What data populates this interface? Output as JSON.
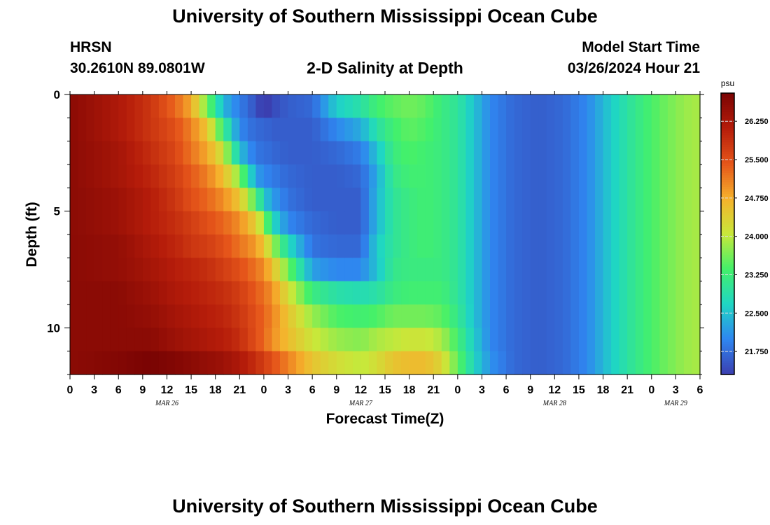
{
  "header": {
    "title": "University of Southern Mississippi Ocean Cube",
    "station": "HRSN",
    "coordinates": "30.2610N  89.0801W",
    "subtitle": "2-D Salinity at Depth",
    "model_start_label": "Model Start Time",
    "model_start_value": "03/26/2024 Hour 21"
  },
  "footer": {
    "title": "University of Southern Mississippi Ocean Cube"
  },
  "chart_data": {
    "type": "heatmap",
    "xlabel": "Forecast Time(Z)",
    "ylabel": "Depth (ft)",
    "colorbar_unit": "psu",
    "x_range_hours": [
      0,
      78
    ],
    "x_tick_labels": [
      "0",
      "3",
      "6",
      "9",
      "12",
      "15",
      "18",
      "21",
      "0",
      "3",
      "6",
      "9",
      "12",
      "15",
      "18",
      "21",
      "0",
      "3",
      "6",
      "9",
      "12",
      "15",
      "18",
      "21",
      "0",
      "3",
      "6"
    ],
    "day_labels": [
      {
        "label": "MAR 26",
        "hour": 12
      },
      {
        "label": "MAR 27",
        "hour": 36
      },
      {
        "label": "MAR 28",
        "hour": 60
      },
      {
        "label": "MAR 29",
        "hour": 75
      }
    ],
    "ylim": [
      0,
      12
    ],
    "y_inverted": true,
    "y_ticks": [
      0,
      5,
      10
    ],
    "colorbar_ticks": [
      "21.750",
      "22.500",
      "23.250",
      "24.000",
      "24.750",
      "25.500",
      "26.250"
    ],
    "colorbar_range": [
      21.3,
      26.8
    ],
    "colormap": [
      "#3b3fb0",
      "#2f86f0",
      "#1fd6c4",
      "#44f06a",
      "#c8e83a",
      "#f6b12c",
      "#e5551a",
      "#b51c0a",
      "#7a0403"
    ],
    "depth_levels": [
      0.5,
      1.5,
      2.5,
      3.5,
      4.5,
      5.5,
      6.5,
      7.5,
      8.5,
      9.5,
      10.5,
      11.5
    ],
    "salinity_profiles": [
      {
        "hour": 0,
        "values": [
          26.6,
          26.6,
          26.6,
          26.6,
          26.6,
          26.6,
          26.6,
          26.6,
          26.6,
          26.6,
          26.6,
          26.6
        ]
      },
      {
        "hour": 6,
        "values": [
          26.2,
          26.2,
          26.3,
          26.3,
          26.4,
          26.4,
          26.5,
          26.5,
          26.6,
          26.6,
          26.6,
          26.7
        ]
      },
      {
        "hour": 10,
        "values": [
          25.8,
          25.8,
          25.9,
          26.0,
          26.1,
          26.1,
          26.2,
          26.3,
          26.4,
          26.5,
          26.6,
          26.8
        ]
      },
      {
        "hour": 13,
        "values": [
          25.3,
          25.5,
          25.6,
          25.7,
          25.8,
          25.9,
          26.0,
          26.1,
          26.2,
          26.3,
          26.4,
          26.7
        ]
      },
      {
        "hour": 15,
        "values": [
          24.8,
          25.1,
          25.2,
          25.4,
          25.5,
          25.7,
          25.8,
          26.0,
          26.1,
          26.2,
          26.3,
          26.6
        ]
      },
      {
        "hour": 17,
        "values": [
          23.6,
          24.5,
          24.8,
          25.1,
          25.3,
          25.5,
          25.7,
          25.9,
          26.0,
          26.1,
          26.2,
          26.5
        ]
      },
      {
        "hour": 19,
        "values": [
          22.4,
          23.2,
          24.1,
          24.6,
          25.0,
          25.3,
          25.5,
          25.7,
          25.9,
          26.0,
          26.1,
          26.4
        ]
      },
      {
        "hour": 21,
        "values": [
          21.9,
          22.0,
          22.5,
          23.7,
          24.5,
          25.0,
          25.2,
          25.5,
          25.7,
          25.8,
          25.9,
          26.2
        ]
      },
      {
        "hour": 23,
        "values": [
          21.5,
          21.7,
          21.8,
          22.2,
          23.4,
          24.4,
          24.9,
          25.2,
          25.4,
          25.5,
          25.5,
          25.9
        ]
      },
      {
        "hour": 24,
        "values": [
          21.2,
          21.7,
          21.8,
          22.0,
          22.6,
          23.8,
          24.5,
          25.0,
          25.2,
          25.3,
          25.3,
          25.7
        ]
      },
      {
        "hour": 25,
        "values": [
          21.4,
          21.6,
          21.7,
          21.9,
          22.2,
          22.8,
          23.9,
          24.6,
          25.0,
          25.1,
          25.0,
          25.5
        ]
      },
      {
        "hour": 27,
        "values": [
          21.6,
          21.6,
          21.6,
          21.7,
          21.8,
          22.0,
          22.8,
          23.6,
          24.2,
          24.5,
          24.6,
          25.1
        ]
      },
      {
        "hour": 30,
        "values": [
          21.7,
          21.6,
          21.6,
          21.6,
          21.6,
          21.7,
          21.8,
          22.2,
          23.2,
          23.8,
          24.1,
          24.5
        ]
      },
      {
        "hour": 33,
        "values": [
          22.6,
          22.0,
          21.7,
          21.6,
          21.6,
          21.6,
          21.7,
          22.0,
          22.9,
          23.4,
          23.8,
          24.2
        ]
      },
      {
        "hour": 36,
        "values": [
          22.9,
          22.3,
          21.9,
          21.7,
          21.6,
          21.6,
          21.7,
          22.0,
          22.8,
          23.3,
          23.7,
          24.0
        ]
      },
      {
        "hour": 38,
        "values": [
          23.3,
          22.9,
          22.5,
          22.3,
          22.4,
          22.4,
          22.6,
          22.5,
          22.9,
          23.4,
          23.9,
          24.2
        ]
      },
      {
        "hour": 40,
        "values": [
          23.5,
          23.3,
          23.2,
          23.1,
          23.0,
          23.0,
          23.0,
          23.1,
          23.2,
          23.6,
          24.0,
          24.5
        ]
      },
      {
        "hour": 42,
        "values": [
          23.6,
          23.5,
          23.4,
          23.3,
          23.2,
          23.2,
          23.2,
          23.2,
          23.3,
          23.6,
          24.1,
          24.6
        ]
      },
      {
        "hour": 44,
        "values": [
          23.5,
          23.4,
          23.3,
          23.3,
          23.3,
          23.3,
          23.3,
          23.2,
          23.3,
          23.6,
          24.1,
          24.6
        ]
      },
      {
        "hour": 46,
        "values": [
          23.2,
          23.2,
          23.2,
          23.2,
          23.2,
          23.2,
          23.2,
          23.2,
          23.3,
          23.5,
          23.9,
          24.3
        ]
      },
      {
        "hour": 48,
        "values": [
          23.0,
          23.0,
          23.0,
          23.0,
          23.0,
          23.0,
          23.0,
          23.0,
          23.0,
          23.1,
          23.3,
          23.5
        ]
      },
      {
        "hour": 50,
        "values": [
          22.5,
          22.5,
          22.5,
          22.5,
          22.5,
          22.5,
          22.5,
          22.5,
          22.5,
          22.5,
          22.6,
          22.7
        ]
      },
      {
        "hour": 52,
        "values": [
          22.0,
          22.0,
          22.0,
          22.0,
          22.0,
          22.0,
          22.0,
          22.0,
          22.0,
          22.0,
          22.0,
          22.1
        ]
      },
      {
        "hour": 55,
        "values": [
          21.7,
          21.7,
          21.7,
          21.7,
          21.7,
          21.7,
          21.7,
          21.7,
          21.7,
          21.7,
          21.7,
          21.7
        ]
      },
      {
        "hour": 58,
        "values": [
          21.6,
          21.6,
          21.6,
          21.6,
          21.6,
          21.6,
          21.6,
          21.6,
          21.6,
          21.6,
          21.6,
          21.6
        ]
      },
      {
        "hour": 61,
        "values": [
          21.7,
          21.7,
          21.7,
          21.7,
          21.7,
          21.7,
          21.7,
          21.7,
          21.7,
          21.7,
          21.7,
          21.7
        ]
      },
      {
        "hour": 64,
        "values": [
          22.0,
          22.0,
          22.0,
          22.0,
          22.0,
          22.0,
          22.0,
          22.0,
          22.0,
          22.0,
          22.0,
          22.0
        ]
      },
      {
        "hour": 67,
        "values": [
          22.6,
          22.6,
          22.6,
          22.6,
          22.6,
          22.6,
          22.6,
          22.6,
          22.6,
          22.6,
          22.6,
          22.6
        ]
      },
      {
        "hour": 70,
        "values": [
          23.1,
          23.1,
          23.1,
          23.1,
          23.1,
          23.1,
          23.1,
          23.1,
          23.1,
          23.1,
          23.1,
          23.1
        ]
      },
      {
        "hour": 73,
        "values": [
          23.5,
          23.5,
          23.5,
          23.5,
          23.5,
          23.5,
          23.5,
          23.5,
          23.5,
          23.5,
          23.5,
          23.5
        ]
      },
      {
        "hour": 76,
        "values": [
          23.8,
          23.8,
          23.8,
          23.8,
          23.8,
          23.8,
          23.8,
          23.8,
          23.8,
          23.8,
          23.8,
          23.8
        ]
      },
      {
        "hour": 78,
        "values": [
          23.9,
          23.9,
          23.9,
          23.9,
          23.9,
          23.9,
          23.9,
          23.9,
          23.9,
          23.9,
          23.9,
          23.9
        ]
      }
    ]
  }
}
